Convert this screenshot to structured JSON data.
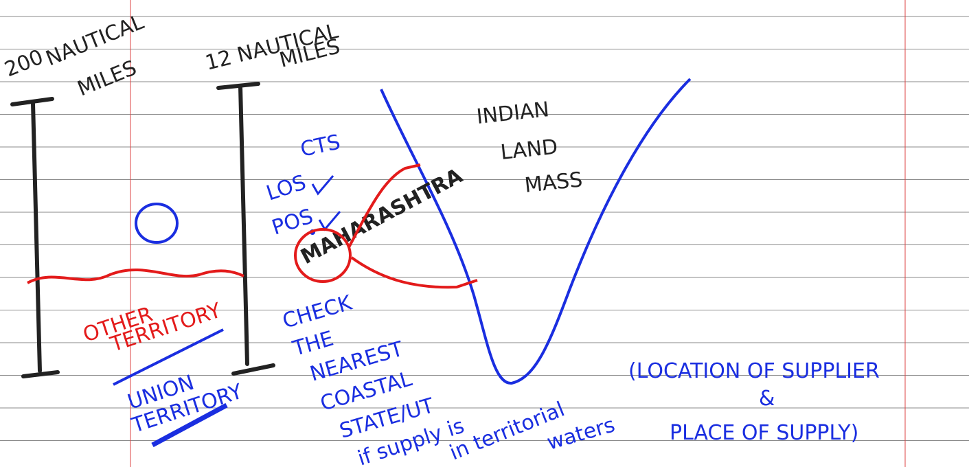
{
  "annotations": {
    "outer_limit": [
      "200",
      "NAUTICAL",
      "MILES"
    ],
    "inner_limit": [
      "12 NAUTICAL",
      "MILES"
    ],
    "land": [
      "INDIAN",
      "LAND",
      "MASS"
    ],
    "cts": "CTS",
    "los": "LOS",
    "pos": "POS",
    "state": "MAHARASHTRA",
    "other": [
      "OTHER",
      "TERRITORY"
    ],
    "ut": [
      "UNION",
      "TERRITORY"
    ],
    "check": [
      "CHECK",
      "THE",
      "NEAREST",
      "COASTAL",
      "STATE/UT"
    ],
    "supply": [
      "if supply is",
      "in territorial",
      "waters"
    ],
    "rule": [
      "(LOCATION OF SUPPLIER",
      "&",
      "PLACE OF SUPPLY)"
    ]
  }
}
